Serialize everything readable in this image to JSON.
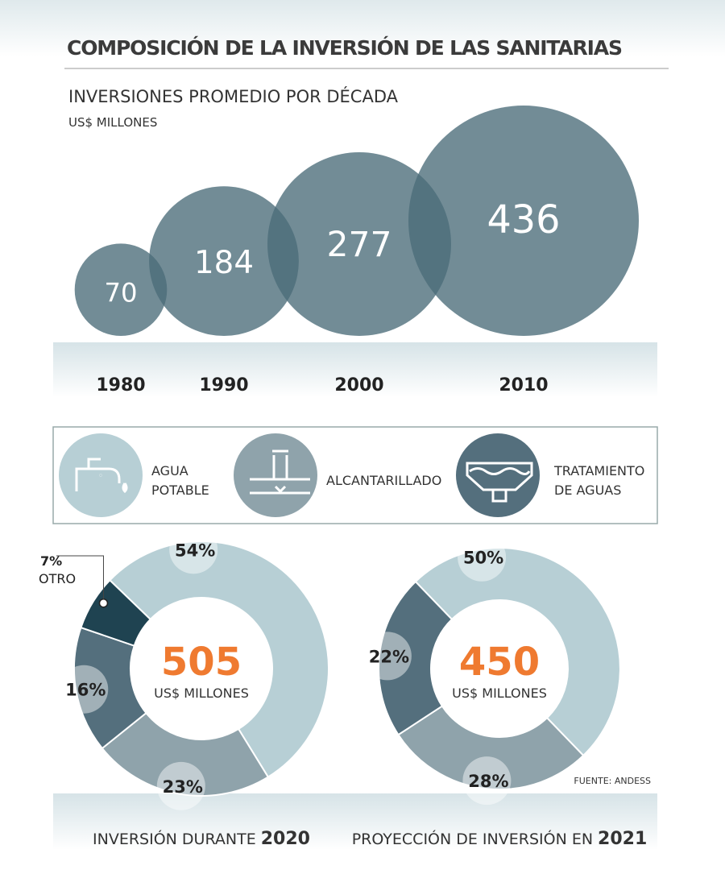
{
  "title": "COMPOSICIÓN DE LA INVERSIÓN DE LAS SANITARIAS",
  "source": "FUENTE: ANDESS",
  "legend": [
    {
      "name": "AGUA POTABLE",
      "color": "#b7cfd5"
    },
    {
      "name": "ALCANTARILLADO",
      "color": "#8fa3ab"
    },
    {
      "name": "TRATAMIENTO DE AGUAS",
      "color": "#546f7d"
    }
  ],
  "chart_data": [
    {
      "type": "bubble",
      "title": "INVERSIONES PROMEDIO POR DÉCADA",
      "subtitle": "US$ MILLONES",
      "categories": [
        "1980",
        "1990",
        "2000",
        "2010"
      ],
      "values": [
        70,
        184,
        277,
        436
      ],
      "color": "#4a6b79"
    },
    {
      "type": "donut",
      "title": "INVERSIÓN DURANTE",
      "year": "2020",
      "total": 505,
      "unit": "US$ MILLONES",
      "values": [
        54,
        23,
        16,
        7
      ],
      "value_labels": [
        "54%",
        "23%",
        "16%",
        "7%"
      ],
      "colors": [
        "#b7cfd5",
        "#8fa3ab",
        "#546f7d",
        "#1f4351"
      ],
      "other_label": "OTRO"
    },
    {
      "type": "donut",
      "title": "PROYECCIÓN DE  INVERSIÓN EN",
      "year": "2021",
      "total": 450,
      "unit": "US$ MILLONES",
      "values": [
        50,
        28,
        22
      ],
      "value_labels": [
        "50%",
        "28%",
        "22%"
      ],
      "colors": [
        "#b7cfd5",
        "#8fa3ab",
        "#546f7d"
      ]
    }
  ]
}
